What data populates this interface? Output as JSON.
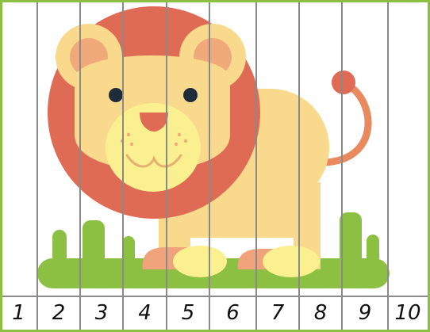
{
  "puzzle": {
    "strip_numbers": [
      "1",
      "2",
      "3",
      "4",
      "5",
      "6",
      "7",
      "8",
      "9",
      "10"
    ],
    "subject_icon": "lion-icon"
  },
  "colors": {
    "border_green": "#8cc043",
    "grass_green": "#8cc043",
    "mane_orange": "#e06b55",
    "body_yellow": "#f9d98b",
    "muzzle_yellow": "#fbf08f",
    "ear_inner": "#f0aa7a",
    "tail_orange": "#e8895e",
    "strip_line": "#8a8a8a"
  }
}
